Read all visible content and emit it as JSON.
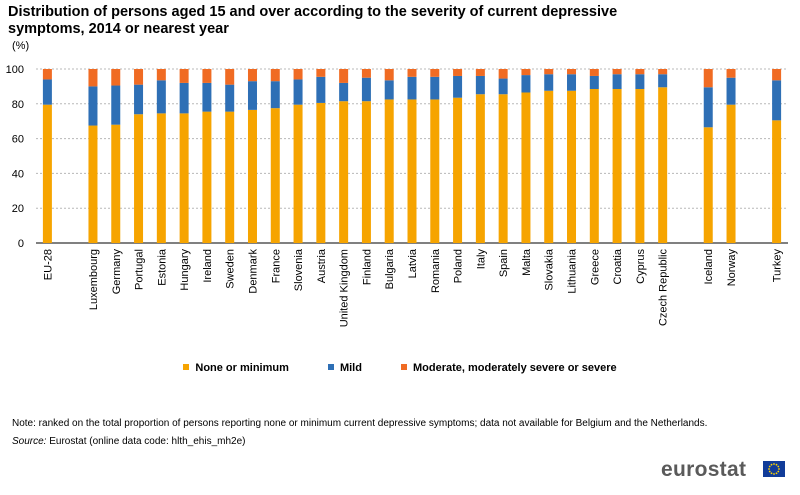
{
  "title": "Distribution of persons aged 15 and over according to the severity of current depressive symptoms, 2014 or nearest  year",
  "unit": "(%)",
  "colors": {
    "none": "#f6a400",
    "mild": "#2e6fb5",
    "moderate": "#f06b23",
    "grid": "#b8b8b8"
  },
  "chart_data": {
    "type": "bar",
    "stacked": true,
    "ylim": [
      0,
      100
    ],
    "yticks": [
      0,
      20,
      40,
      60,
      80,
      100
    ],
    "categories": [
      "EU-28",
      "",
      "Luxembourg",
      "Germany",
      "Portugal",
      "Estonia",
      "Hungary",
      "Ireland",
      "Sweden",
      "Denmark",
      "France",
      "Slovenia",
      "Austria",
      "United Kingdom",
      "Finland",
      "Bulgaria",
      "Latvia",
      "Romania",
      "Poland",
      "Italy",
      "Spain",
      "Malta",
      "Slovakia",
      "Lithuania",
      "Greece",
      "Croatia",
      "Cyprus",
      "Czech Republic",
      "",
      "Iceland",
      "Norway",
      "",
      "Turkey"
    ],
    "series": [
      {
        "name": "None or minimum",
        "values": [
          79.5,
          null,
          67.5,
          68,
          74,
          74.5,
          74.5,
          75.5,
          75.5,
          76.5,
          77.5,
          79.5,
          80.5,
          81.5,
          81.5,
          82.5,
          82.5,
          82.5,
          83.5,
          85.5,
          85.5,
          86.5,
          87.5,
          87.5,
          88.5,
          88.5,
          88.5,
          89.5,
          null,
          66.5,
          79.5,
          null,
          70.5
        ]
      },
      {
        "name": "Mild",
        "values": [
          14.5,
          null,
          22.5,
          22.5,
          17,
          19,
          17.5,
          16.5,
          15.5,
          16.5,
          15.5,
          14.5,
          15,
          10.5,
          13.5,
          11,
          13,
          13,
          12.5,
          10.5,
          9,
          10,
          9.5,
          9.5,
          7.5,
          8.5,
          8.5,
          7.5,
          null,
          23,
          15.5,
          null,
          23
        ]
      },
      {
        "name": "Moderate, moderately severe or severe",
        "values": [
          6,
          null,
          10,
          9.5,
          9,
          6.5,
          8,
          8,
          9,
          7,
          7,
          6,
          4.5,
          8,
          5,
          6.5,
          4.5,
          4.5,
          4,
          4,
          5.5,
          3.5,
          3,
          3,
          4,
          3,
          3,
          3,
          null,
          10.5,
          5,
          null,
          6.5
        ]
      }
    ]
  },
  "legend": {
    "none": "None or minimum",
    "mild": "Mild",
    "moderate": "Moderate, moderately severe or severe"
  },
  "note": "Note: ranked on the total proportion of persons reporting none or minimum current depressive symptoms; data not available for Belgium and the Netherlands.",
  "source_label": "Source:",
  "source_text": " Eurostat (online data code: hlth_ehis_mh2e)",
  "logo_text": "eurostat"
}
